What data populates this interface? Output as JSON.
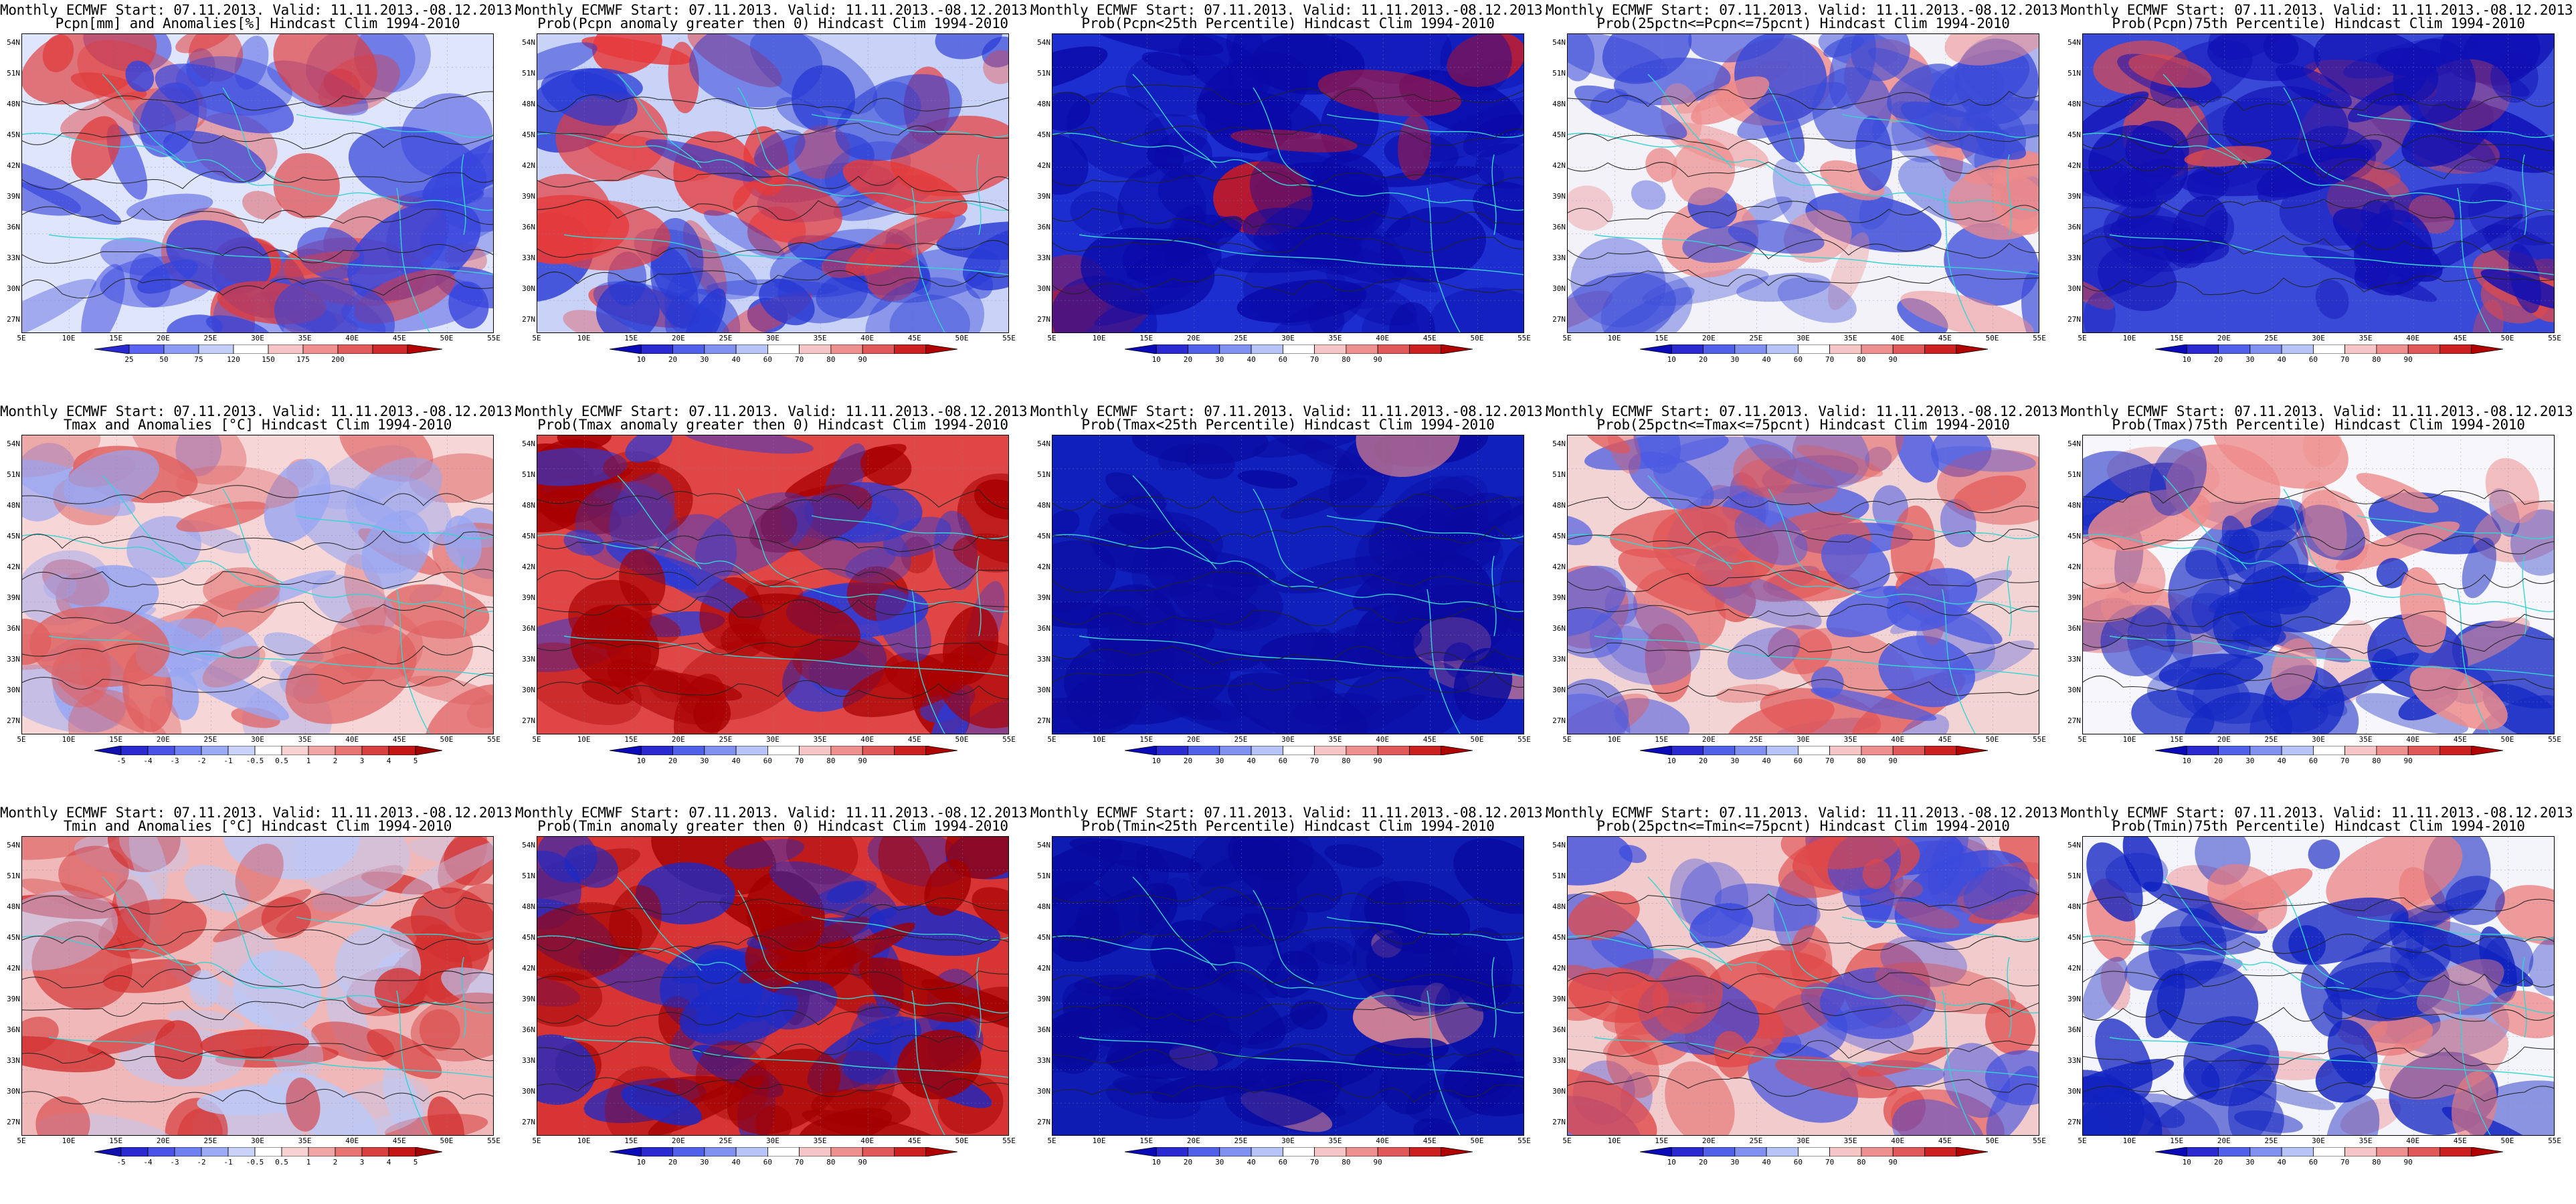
{
  "header_line": "Monthly ECMWF Start: 07.11.2013. Valid: 11.11.2013.-08.12.2013.",
  "lat_labels": [
    "54N",
    "51N",
    "48N",
    "45N",
    "42N",
    "39N",
    "36N",
    "33N",
    "30N",
    "27N"
  ],
  "lon_labels": [
    "5E",
    "10E",
    "15E",
    "20E",
    "25E",
    "30E",
    "35E",
    "40E",
    "45E",
    "50E",
    "55E"
  ],
  "colorbars": {
    "pcpn_anom": {
      "labels": [
        "25",
        "50",
        "75",
        "120",
        "150",
        "175",
        "200"
      ],
      "colors": [
        "#2a2ad0",
        "#5a64f0",
        "#8c9cf5",
        "#c3cff8",
        "#ffffff",
        "#f6c4c4",
        "#ef8f8f",
        "#e25a5a",
        "#cf2a2a",
        "#b30000"
      ]
    },
    "temp_anom": {
      "labels": [
        "-5",
        "-4",
        "-3",
        "-2",
        "-1",
        "-0.5",
        "0.5",
        "1",
        "2",
        "3",
        "4",
        "5"
      ],
      "colors": [
        "#1010b0",
        "#2a2ad0",
        "#4a52e8",
        "#6f80f0",
        "#9aaaf5",
        "#c9d2f8",
        "#ffffff",
        "#f8d2d2",
        "#f1a6a6",
        "#e77373",
        "#d84040",
        "#c41616",
        "#a00000"
      ]
    },
    "prob": {
      "labels": [
        "10",
        "20",
        "30",
        "40",
        "60",
        "70",
        "80",
        "90"
      ],
      "colors": [
        "#0a0ab8",
        "#2a2ad0",
        "#5060e8",
        "#8090f0",
        "#b8c4f8",
        "#ffffff",
        "#f6c6c6",
        "#ee9090",
        "#e05858",
        "#cc2020",
        "#b00000"
      ]
    }
  },
  "rows": [
    {
      "panels": [
        {
          "title": "Pcpn[mm] and Anomalies[%] Hindcast Clim 1994-2010",
          "cbar": "pcpn_anom",
          "map": {
            "base": "#dfe5fb",
            "warm": "#e03a3a",
            "cool": "#3644dc",
            "warm_weight": 0.45,
            "cool_weight": 0.5
          }
        },
        {
          "title": "Prob(Pcpn anomaly greater then 0) Hindcast Clim 1994-2010",
          "cbar": "prob",
          "map": {
            "base": "#c9d3f8",
            "warm": "#e63a3a",
            "cool": "#2638d4",
            "warm_weight": 0.45,
            "cool_weight": 0.55
          }
        },
        {
          "title": "Prob(Pcpn<25th Percentile) Hindcast Clim 1994-2010",
          "cbar": "prob",
          "map": {
            "base": "#1c2ed0",
            "warm": "#d41a1a",
            "cool": "#0a0aa8",
            "warm_weight": 0.15,
            "cool_weight": 0.8
          }
        },
        {
          "title": "Prob(25pctn<=Pcpn<=75pcnt) Hindcast Clim 1994-2010",
          "cbar": "prob",
          "map": {
            "base": "#f2f2f8",
            "warm": "#ee8a8a",
            "cool": "#3a4ad8",
            "warm_weight": 0.35,
            "cool_weight": 0.4
          }
        },
        {
          "title": "Prob(Pcpn)75th Percentile) Hindcast Clim 1994-2010",
          "cbar": "prob",
          "map": {
            "base": "#3a4ad8",
            "warm": "#e04a4a",
            "cool": "#1010b4",
            "warm_weight": 0.3,
            "cool_weight": 0.6
          }
        }
      ]
    },
    {
      "panels": [
        {
          "title": "Tmax and Anomalies [°C] Hindcast Clim 1994-2010",
          "cbar": "temp_anom",
          "map": {
            "base": "#f6d6d6",
            "warm": "#e06060",
            "cool": "#98a6f2",
            "warm_weight": 0.55,
            "cool_weight": 0.3
          }
        },
        {
          "title": "Prob(Tmax anomaly greater then 0) Hindcast Clim 1994-2010",
          "cbar": "prob",
          "map": {
            "base": "#e04646",
            "warm": "#a80000",
            "cool": "#2a3ad6",
            "warm_weight": 0.65,
            "cool_weight": 0.3
          }
        },
        {
          "title": "Prob(Tmax<25th Percentile) Hindcast Clim 1994-2010",
          "cbar": "prob",
          "map": {
            "base": "#1020bc",
            "warm": "#ee8a8a",
            "cool": "#0a0aa0",
            "warm_weight": 0.08,
            "cool_weight": 0.85
          }
        },
        {
          "title": "Prob(25pctn<=Tmax<=75pcnt) Hindcast Clim 1994-2010",
          "cbar": "prob",
          "map": {
            "base": "#f3d4d4",
            "warm": "#e25656",
            "cool": "#4a5ae2",
            "warm_weight": 0.45,
            "cool_weight": 0.35
          }
        },
        {
          "title": "Prob(Tmax)75th Percentile) Hindcast Clim 1994-2010",
          "cbar": "prob",
          "map": {
            "base": "#f6f6fb",
            "warm": "#ee8a8a",
            "cool": "#1428c4",
            "warm_weight": 0.3,
            "cool_weight": 0.6
          }
        }
      ]
    },
    {
      "panels": [
        {
          "title": "Tmin and Anomalies [°C] Hindcast Clim 1994-2010",
          "cbar": "temp_anom",
          "map": {
            "base": "#f0b8b8",
            "warm": "#d43030",
            "cool": "#bcc8f6",
            "warm_weight": 0.6,
            "cool_weight": 0.25
          }
        },
        {
          "title": "Prob(Tmin anomaly greater then 0) Hindcast Clim 1994-2010",
          "cbar": "prob",
          "map": {
            "base": "#d83434",
            "warm": "#a20000",
            "cool": "#1a2ac8",
            "warm_weight": 0.7,
            "cool_weight": 0.3
          }
        },
        {
          "title": "Prob(Tmin<25th Percentile) Hindcast Clim 1994-2010",
          "cbar": "prob",
          "map": {
            "base": "#0e1cb4",
            "warm": "#ee9090",
            "cool": "#08089c",
            "warm_weight": 0.1,
            "cool_weight": 0.85
          }
        },
        {
          "title": "Prob(25pctn<=Tmin<=75pcnt) Hindcast Clim 1994-2010",
          "cbar": "prob",
          "map": {
            "base": "#f2cccc",
            "warm": "#e04848",
            "cool": "#3a4ade",
            "warm_weight": 0.5,
            "cool_weight": 0.4
          }
        },
        {
          "title": "Prob(Tmin)75th Percentile) Hindcast Clim 1994-2010",
          "cbar": "prob",
          "map": {
            "base": "#f4f4fb",
            "warm": "#ec7e7e",
            "cool": "#1022c0",
            "warm_weight": 0.3,
            "cool_weight": 0.55
          }
        }
      ]
    }
  ]
}
